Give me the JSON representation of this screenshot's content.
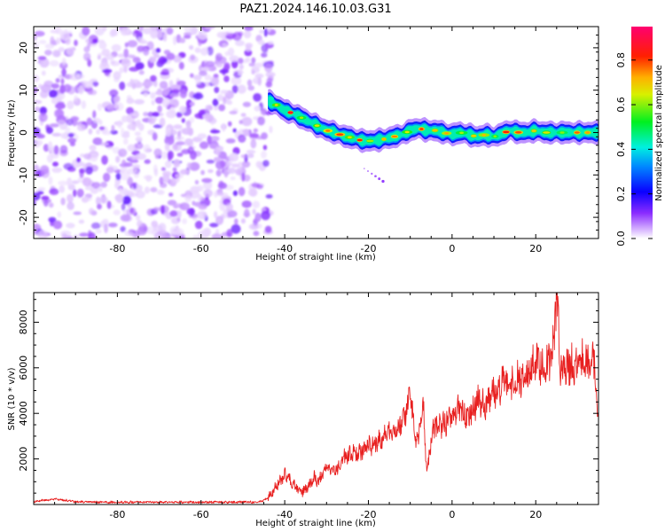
{
  "title": "PAZ1.2024.146.10.03.G31",
  "chart_data": [
    {
      "type": "heatmap",
      "xlabel": "Height of straight line (km)",
      "ylabel": "Frequency (Hz)",
      "xlim": [
        -100,
        35
      ],
      "ylim": [
        -25,
        25
      ],
      "xticks": [
        -80,
        -60,
        -40,
        -20,
        0,
        20
      ],
      "yticks": [
        -20,
        -10,
        0,
        10,
        20
      ],
      "noise_region_x": [
        -100,
        -44
      ],
      "signal_ridge": {
        "x": [
          -44,
          -42,
          -40,
          -38,
          -36,
          -34,
          -32,
          -30,
          -28,
          -26,
          -24,
          -22,
          -20,
          -18,
          -16,
          -14,
          -12,
          -10,
          -8,
          -6,
          -4,
          -2,
          0,
          2,
          4,
          6,
          8,
          10,
          12,
          14,
          16,
          18,
          20,
          22,
          24,
          26,
          28,
          30,
          32,
          35
        ],
        "freq": [
          7.5,
          6.5,
          5.2,
          4.5,
          3.5,
          2.5,
          1.5,
          0.5,
          0.0,
          -0.8,
          -1.2,
          -1.8,
          -2.0,
          -1.8,
          -1.5,
          -1.0,
          -0.5,
          0.5,
          1.0,
          0.5,
          0.5,
          0.0,
          -0.5,
          0.0,
          -0.5,
          -1.0,
          -0.5,
          -1.0,
          -0.2,
          0.5,
          0.0,
          0.0,
          0.5,
          0.0,
          0.0,
          0.0,
          0.0,
          0.0,
          0.0,
          0.0
        ]
      },
      "colorbar": {
        "label": "Normalized spectral amplitude",
        "range": [
          0.0,
          0.95
        ],
        "ticks": [
          0.0,
          0.2,
          0.4,
          0.6,
          0.8
        ],
        "tick_labels": [
          "0.0",
          "0.2",
          "0.4",
          "0.6",
          "0.8"
        ],
        "colormap": "gist_rainbow_r with white at zero"
      }
    },
    {
      "type": "line",
      "xlabel": "Height of straight line (km)",
      "ylabel": "SNR (10 * v/v)",
      "xlim": [
        -100,
        35
      ],
      "ylim": [
        0,
        9300
      ],
      "xticks": [
        -80,
        -60,
        -40,
        -20,
        0,
        20
      ],
      "yticks": [
        2000,
        4000,
        6000,
        8000
      ],
      "color": "#e82020",
      "series": [
        {
          "x": [
            -100,
            -95,
            -90,
            -80,
            -70,
            -60,
            -50,
            -46,
            -44,
            -42,
            -40,
            -38,
            -37,
            -36,
            -34,
            -33,
            -32,
            -30,
            -28,
            -26,
            -24,
            -22,
            -20,
            -18,
            -16,
            -14,
            -12,
            -11,
            -10,
            -9,
            -8,
            -7,
            -6,
            -5,
            -4,
            -2,
            0,
            2,
            4,
            6,
            8,
            10,
            12,
            14,
            16,
            18,
            20,
            22,
            24,
            25,
            26,
            28,
            30,
            32,
            34,
            35
          ],
          "y": [
            120,
            250,
            120,
            100,
            110,
            100,
            110,
            100,
            300,
            800,
            1300,
            900,
            700,
            500,
            900,
            1200,
            1000,
            1600,
            1500,
            2000,
            2200,
            2300,
            2600,
            2800,
            3000,
            3300,
            3600,
            3900,
            5400,
            3000,
            2700,
            4800,
            1300,
            2800,
            3500,
            3500,
            3900,
            4200,
            3800,
            4600,
            4500,
            4800,
            5400,
            5200,
            5500,
            5600,
            6300,
            6100,
            6500,
            9300,
            5800,
            6100,
            6200,
            6300,
            6300,
            3500
          ]
        }
      ]
    }
  ]
}
